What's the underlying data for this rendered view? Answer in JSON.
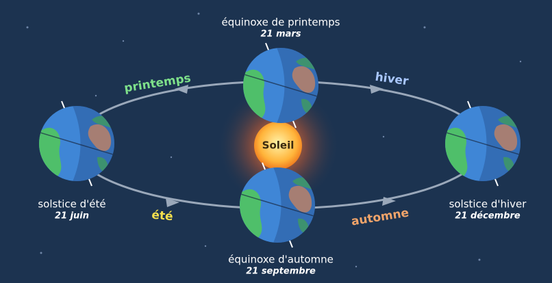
{
  "sun": {
    "label": "Soleil"
  },
  "positions": [
    {
      "name": "équinoxe de printemps",
      "date": "21 mars"
    },
    {
      "name": "solstice d'été",
      "date": "21 juin"
    },
    {
      "name": "solstice d'hiver",
      "date": "21 décembre"
    },
    {
      "name": "équinoxe d'automne",
      "date": "21 septembre"
    }
  ],
  "seasons": [
    "printemps",
    "hiver",
    "été",
    "automne"
  ]
}
